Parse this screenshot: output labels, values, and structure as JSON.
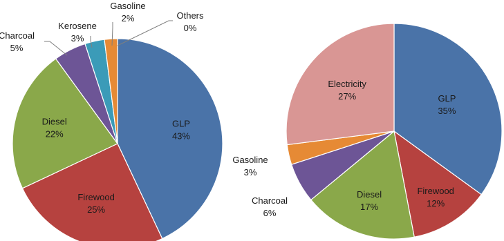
{
  "chart_data": [
    {
      "type": "pie",
      "title": "",
      "slices": [
        {
          "label": "GLP",
          "value": 43,
          "value_label": "43%",
          "color": "#4a73a8"
        },
        {
          "label": "Firewood",
          "value": 25,
          "value_label": "25%",
          "color": "#b6423f"
        },
        {
          "label": "Diesel",
          "value": 22,
          "value_label": "22%",
          "color": "#8aa84a"
        },
        {
          "label": "Charcoal",
          "value": 5,
          "value_label": "5%",
          "color": "#6d5596"
        },
        {
          "label": "Kerosene",
          "value": 3,
          "value_label": "3%",
          "color": "#3b9bb8"
        },
        {
          "label": "Gasoline",
          "value": 2,
          "value_label": "2%",
          "color": "#e68a35"
        },
        {
          "label": "Others",
          "value": 0,
          "value_label": "0%",
          "color": "#7f7f7f"
        }
      ]
    },
    {
      "type": "pie",
      "title": "",
      "slices": [
        {
          "label": "GLP",
          "value": 35,
          "value_label": "35%",
          "color": "#4a73a8"
        },
        {
          "label": "Firewood",
          "value": 12,
          "value_label": "12%",
          "color": "#b6423f"
        },
        {
          "label": "Diesel",
          "value": 17,
          "value_label": "17%",
          "color": "#8aa84a"
        },
        {
          "label": "Charcoal",
          "value": 6,
          "value_label": "6%",
          "color": "#6d5596"
        },
        {
          "label": "Gasoline",
          "value": 3,
          "value_label": "3%",
          "color": "#e68a35"
        },
        {
          "label": "Electricity",
          "value": 27,
          "value_label": "27%",
          "color": "#d99694"
        }
      ]
    }
  ]
}
